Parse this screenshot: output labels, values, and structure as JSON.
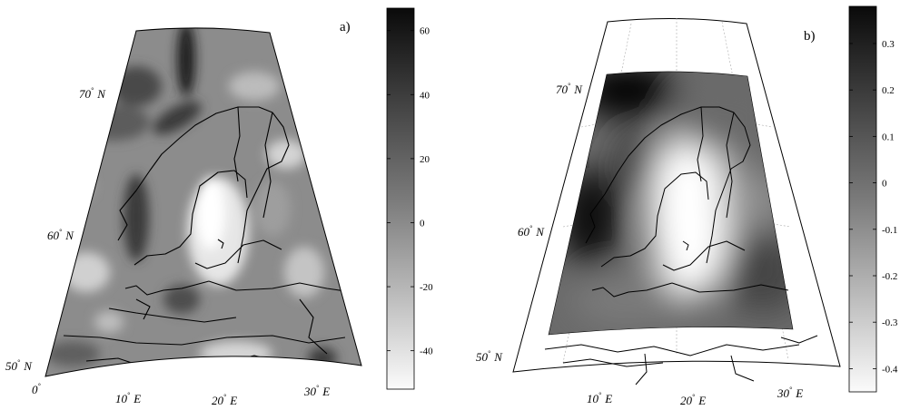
{
  "panels": [
    {
      "label": "a)",
      "lat_labels": [
        {
          "text": "70° N",
          "deg": "70",
          "unit": "N"
        },
        {
          "text": "60° N",
          "deg": "60",
          "unit": "N"
        },
        {
          "text": "50° N",
          "deg": "50",
          "unit": "N"
        }
      ],
      "lon_labels": [
        {
          "text": "0°",
          "deg": "0",
          "unit": ""
        },
        {
          "text": "10° E",
          "deg": "10",
          "unit": "E"
        },
        {
          "text": "20° E",
          "deg": "20",
          "unit": "E"
        },
        {
          "text": "30° E",
          "deg": "30",
          "unit": "E"
        }
      ],
      "colorbar": {
        "ticks": [
          "60",
          "40",
          "20",
          "0",
          "-20",
          "-40"
        ],
        "tick_values": [
          60,
          40,
          20,
          0,
          -20,
          -40
        ],
        "range": [
          -52,
          67
        ],
        "scale": "grayscale (high = black, low = white)"
      }
    },
    {
      "label": "b)",
      "lat_labels": [
        {
          "text": "70° N",
          "deg": "70",
          "unit": "N"
        },
        {
          "text": "60° N",
          "deg": "60",
          "unit": "N"
        },
        {
          "text": "50° N",
          "deg": "50",
          "unit": "N"
        }
      ],
      "lon_labels": [
        {
          "text": "10° E",
          "deg": "10",
          "unit": "E"
        },
        {
          "text": "20° E",
          "deg": "20",
          "unit": "E"
        },
        {
          "text": "30° E",
          "deg": "30",
          "unit": "E"
        }
      ],
      "colorbar": {
        "ticks": [
          "0.3",
          "0.2",
          "0.1",
          "0",
          "-0.1",
          "-0.2",
          "-0.3",
          "-0.4"
        ],
        "tick_values": [
          0.3,
          0.2,
          0.1,
          0,
          -0.1,
          -0.2,
          -0.3,
          -0.4
        ],
        "range": [
          -0.45,
          0.38
        ],
        "scale": "grayscale (high = black, low = white)"
      }
    }
  ],
  "colors": {
    "high": "#0a0a0a",
    "low": "#ffffff",
    "coast": "#000000"
  }
}
